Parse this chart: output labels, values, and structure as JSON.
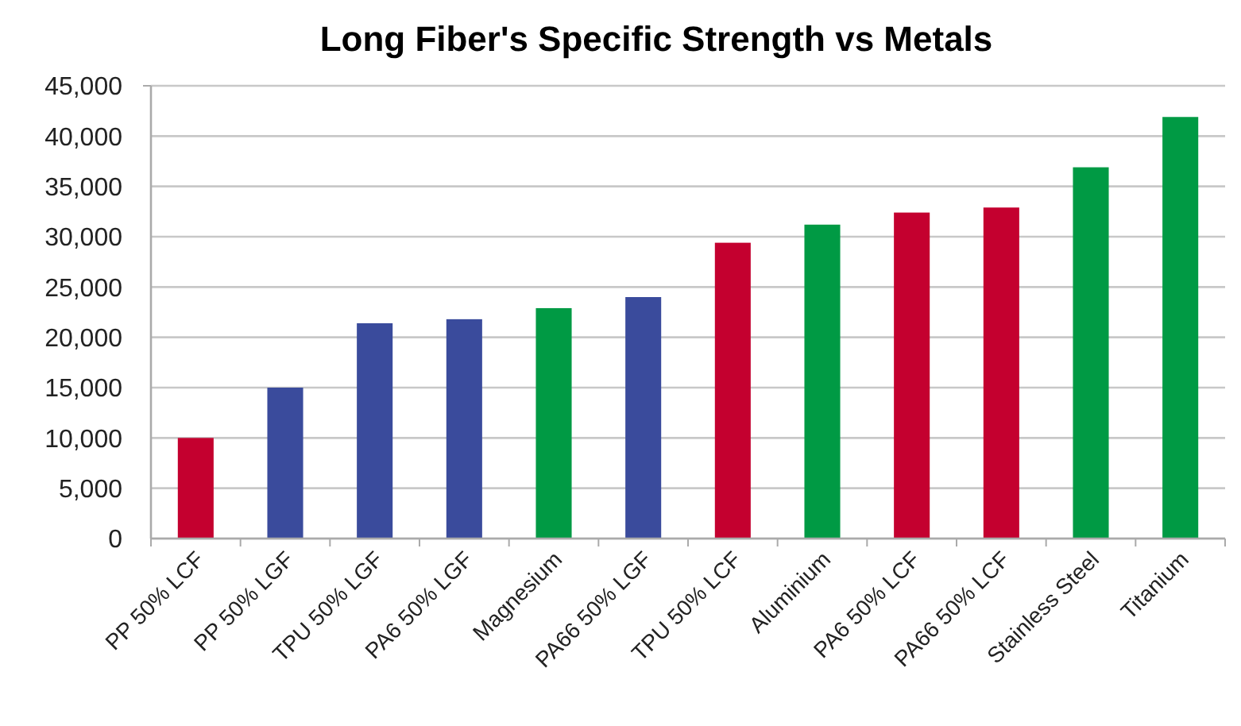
{
  "chart_data": {
    "type": "bar",
    "title": "Long Fiber's Specific Strength vs Metals",
    "categories": [
      "PP 50% LCF",
      "PP 50% LGF",
      "TPU 50% LGF",
      "PA6 50% LGF",
      "Magnesium",
      "PA66 50% LGF",
      "TPU 50% LCF",
      "Aluminium",
      "PA6 50% LCF",
      "PA66 50% LCF",
      "Stainless Steel",
      "Titanium"
    ],
    "values": [
      10000,
      15000,
      21400,
      21800,
      22900,
      24000,
      29400,
      31200,
      32400,
      32900,
      36900,
      41900
    ],
    "colors": [
      "#c4002f",
      "#3a4b9c",
      "#3a4b9c",
      "#3a4b9c",
      "#009a44",
      "#3a4b9c",
      "#c4002f",
      "#009a44",
      "#c4002f",
      "#c4002f",
      "#009a44",
      "#009a44"
    ],
    "ylim": [
      0,
      45000
    ],
    "yticks": [
      {
        "value": 0,
        "label": "0"
      },
      {
        "value": 5000,
        "label": "5,000"
      },
      {
        "value": 10000,
        "label": "10,000"
      },
      {
        "value": 15000,
        "label": "15,000"
      },
      {
        "value": 20000,
        "label": "20,000"
      },
      {
        "value": 25000,
        "label": "25,000"
      },
      {
        "value": 30000,
        "label": "30,000"
      },
      {
        "value": 35000,
        "label": "35,000"
      },
      {
        "value": 40000,
        "label": "40,000"
      },
      {
        "value": 45000,
        "label": "45,000"
      }
    ],
    "grid": "y"
  }
}
